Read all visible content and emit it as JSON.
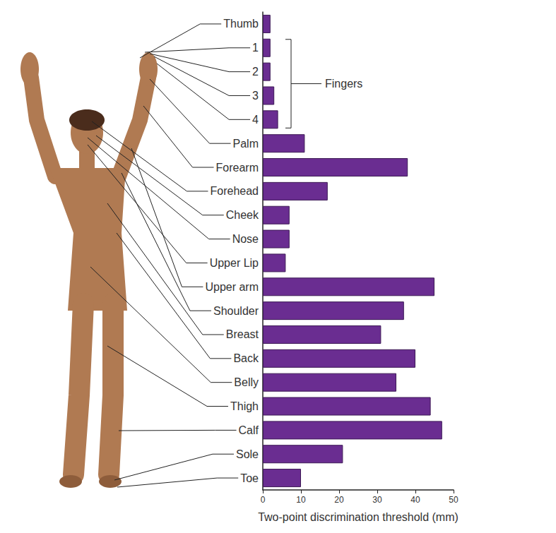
{
  "chart_data": {
    "type": "bar",
    "orientation": "horizontal",
    "categories": [
      "Thumb",
      "1",
      "2",
      "3",
      "4",
      "Palm",
      "Forearm",
      "Forehead",
      "Cheek",
      "Nose",
      "Upper Lip",
      "Upper arm",
      "Shoulder",
      "Breast",
      "Back",
      "Belly",
      "Thigh",
      "Calf",
      "Sole",
      "Toe"
    ],
    "values": [
      2,
      2,
      2,
      3,
      4,
      11,
      38,
      17,
      7,
      7,
      6,
      45,
      37,
      31,
      40,
      35,
      44,
      47,
      21,
      10
    ],
    "color": "#6a2d91",
    "xlabel": "Two-point discrimination threshold (mm)",
    "xlim": [
      0,
      50
    ],
    "xticks": [
      0,
      10,
      20,
      30,
      40,
      50
    ],
    "grid": false,
    "annotations": [
      {
        "text": "Fingers",
        "categories": [
          "1",
          "2",
          "3",
          "4"
        ]
      }
    ]
  }
}
